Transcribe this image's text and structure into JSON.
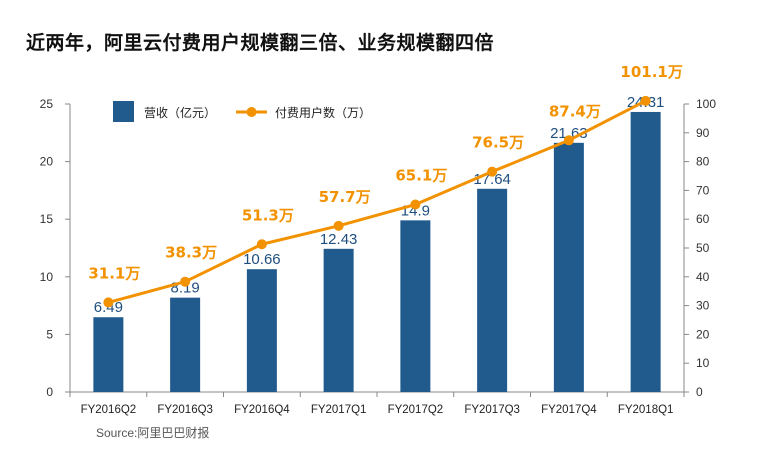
{
  "chart_data": {
    "type": "bar+line",
    "title": "近两年，阿里云付费用户规模翻三倍、业务规模翻四倍",
    "categories": [
      "FY2016Q2",
      "FY2016Q3",
      "FY2016Q4",
      "FY2017Q1",
      "FY2017Q2",
      "FY2017Q3",
      "FY2017Q4",
      "FY2018Q1"
    ],
    "series": [
      {
        "name": "营收（亿元）",
        "type": "bar",
        "axis": "left",
        "color": "#215b8e",
        "values": [
          6.49,
          8.19,
          10.66,
          12.43,
          14.9,
          17.64,
          21.63,
          24.31
        ],
        "labels": [
          "6.49",
          "8.19",
          "10.66",
          "12.43",
          "14.9",
          "17.64",
          "21.63",
          "24.31"
        ]
      },
      {
        "name": "付费用户数（万）",
        "type": "line",
        "axis": "right",
        "color": "#f39200",
        "values": [
          31.1,
          38.3,
          51.3,
          57.7,
          65.1,
          76.5,
          87.4,
          101.1
        ],
        "labels": [
          "31.1万",
          "38.3万",
          "51.3万",
          "57.7万",
          "65.1万",
          "76.5万",
          "87.4万",
          "101.1万"
        ]
      }
    ],
    "y_left": {
      "min": 0,
      "max": 25,
      "ticks": [
        "0",
        "5",
        "10",
        "15",
        "20",
        "25"
      ]
    },
    "y_right": {
      "min": 0,
      "max": 100,
      "ticks": [
        "0",
        "10",
        "20",
        "30",
        "40",
        "50",
        "60",
        "70",
        "80",
        "90",
        "100"
      ]
    },
    "legend": "top-left",
    "grid": false,
    "source": "Source:阿里巴巴财报"
  }
}
